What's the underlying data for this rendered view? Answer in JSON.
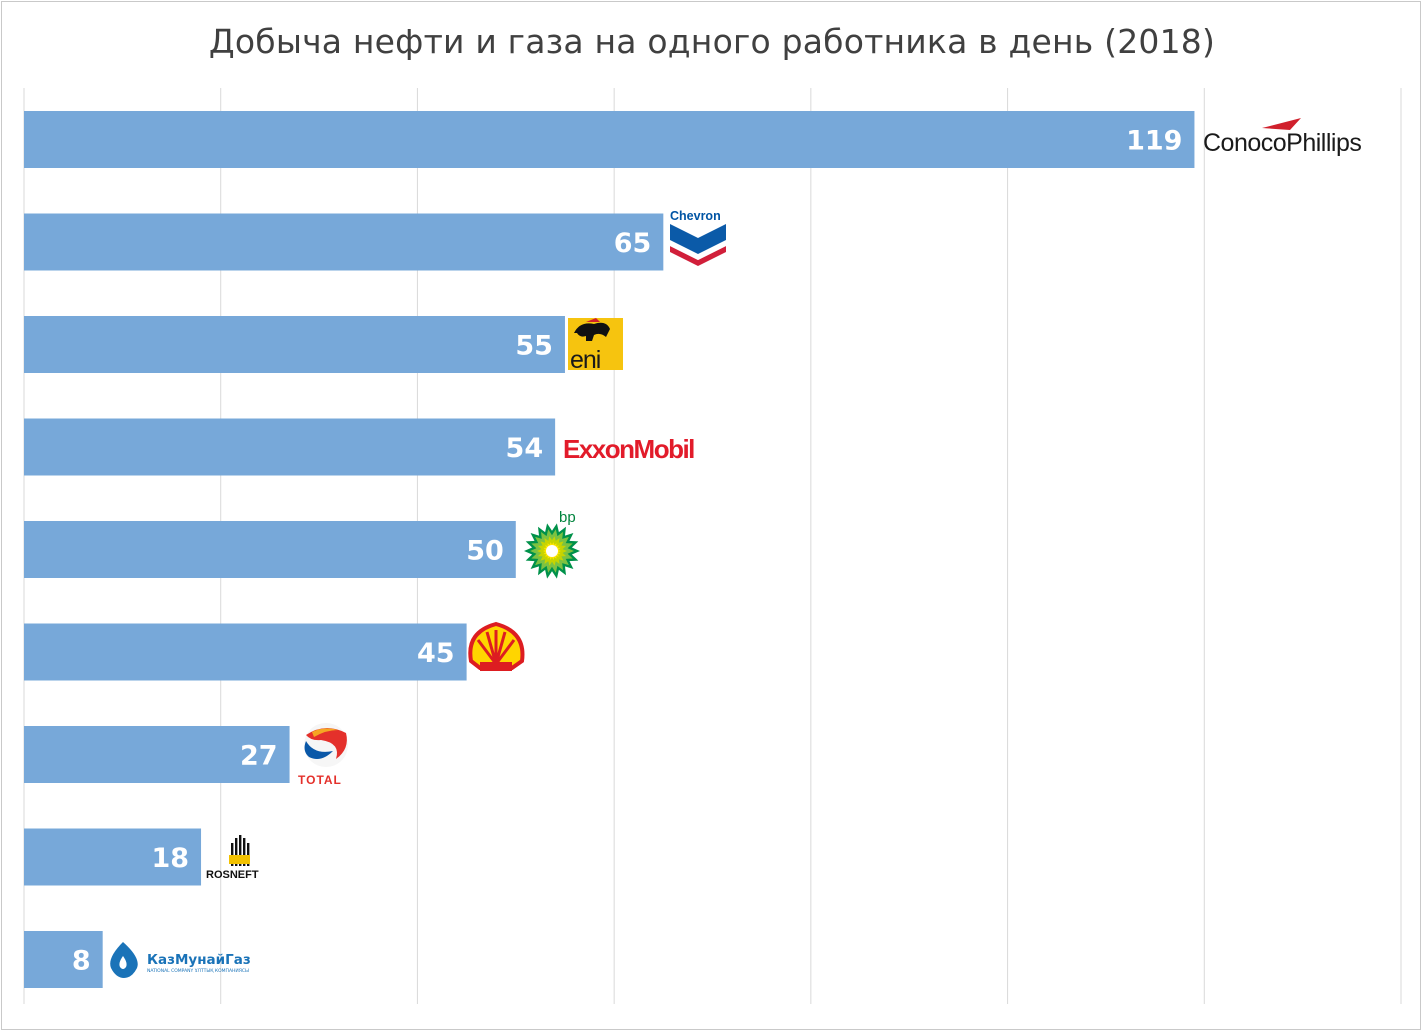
{
  "chart_data": {
    "type": "bar",
    "orientation": "horizontal",
    "title": "Добыча нефти и газа на одного работника в день (2018)",
    "categories": [
      "ConocoPhillips",
      "Chevron",
      "eni",
      "ExxonMobil",
      "bp",
      "Shell",
      "Total",
      "Rosneft",
      "КазМунайГаз"
    ],
    "values": [
      119,
      65,
      55,
      54,
      50,
      45,
      27,
      18,
      8
    ],
    "xlim": [
      0,
      140
    ],
    "x_gridlines": [
      0,
      20,
      40,
      60,
      80,
      100,
      120,
      140
    ],
    "grid": true,
    "legend": "none",
    "bar_color": "#77a8d9",
    "data_labels": "inside-end, white, bold"
  },
  "logos": {
    "conoco": "ConocoPhillips",
    "chevron": "Chevron",
    "eni": "eni",
    "exxon_a": "E",
    "exxon_b": "xx",
    "exxon_c": "onMobil",
    "bp": "bp",
    "total": "TOTAL",
    "rosneft": "ROSNEFT",
    "kmg": "КазМунайГаз",
    "kmg_sub": "NATIONAL COMPANY ҰЛТТЫҚ КОМПАНИЯСЫ"
  }
}
